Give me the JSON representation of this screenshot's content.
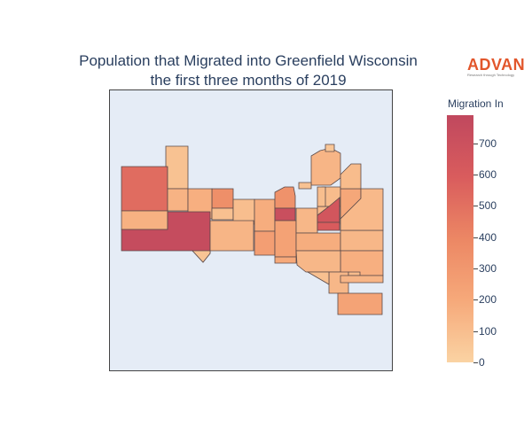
{
  "title": {
    "line1": "Population that Migrated into Greenfield Wisconsin",
    "line2": "the first three months of 2019"
  },
  "logo": {
    "main": "ADVAN",
    "sub": "Research through Technology"
  },
  "colorbar": {
    "title": "Migration In",
    "min": 0,
    "max": 790,
    "ticks": [
      "0",
      "100",
      "200",
      "300",
      "400",
      "500",
      "600",
      "700"
    ],
    "colorscale": [
      "#fad3a3",
      "#f6a97a",
      "#ec8764",
      "#d95c5d",
      "#c0485e"
    ]
  },
  "chart_data": {
    "type": "choropleth",
    "variable": "Migration In",
    "regions": [
      {
        "value": 520
      },
      {
        "value": 80
      },
      {
        "value": 150
      },
      {
        "value": 350
      },
      {
        "value": 170
      },
      {
        "value": 160
      },
      {
        "value": 90
      },
      {
        "value": 750
      },
      {
        "value": 100
      },
      {
        "value": 180
      },
      {
        "value": 330
      },
      {
        "value": 720
      },
      {
        "value": 140
      },
      {
        "value": 260
      },
      {
        "value": 240
      },
      {
        "value": 130
      },
      {
        "value": 180
      },
      {
        "value": 130
      },
      {
        "value": 170
      },
      {
        "value": 130
      },
      {
        "value": 120
      },
      {
        "value": 140
      },
      {
        "value": 110
      },
      {
        "value": 650
      },
      {
        "value": 210
      },
      {
        "value": 120
      },
      {
        "value": 110
      },
      {
        "value": 100
      },
      {
        "value": 130
      },
      {
        "value": 110
      },
      {
        "value": 140
      },
      {
        "value": 90
      },
      {
        "value": 70
      },
      {
        "value": 230
      },
      {
        "value": 200
      },
      {
        "value": 600
      },
      {
        "value": 60
      },
      {
        "value": 80
      }
    ]
  }
}
